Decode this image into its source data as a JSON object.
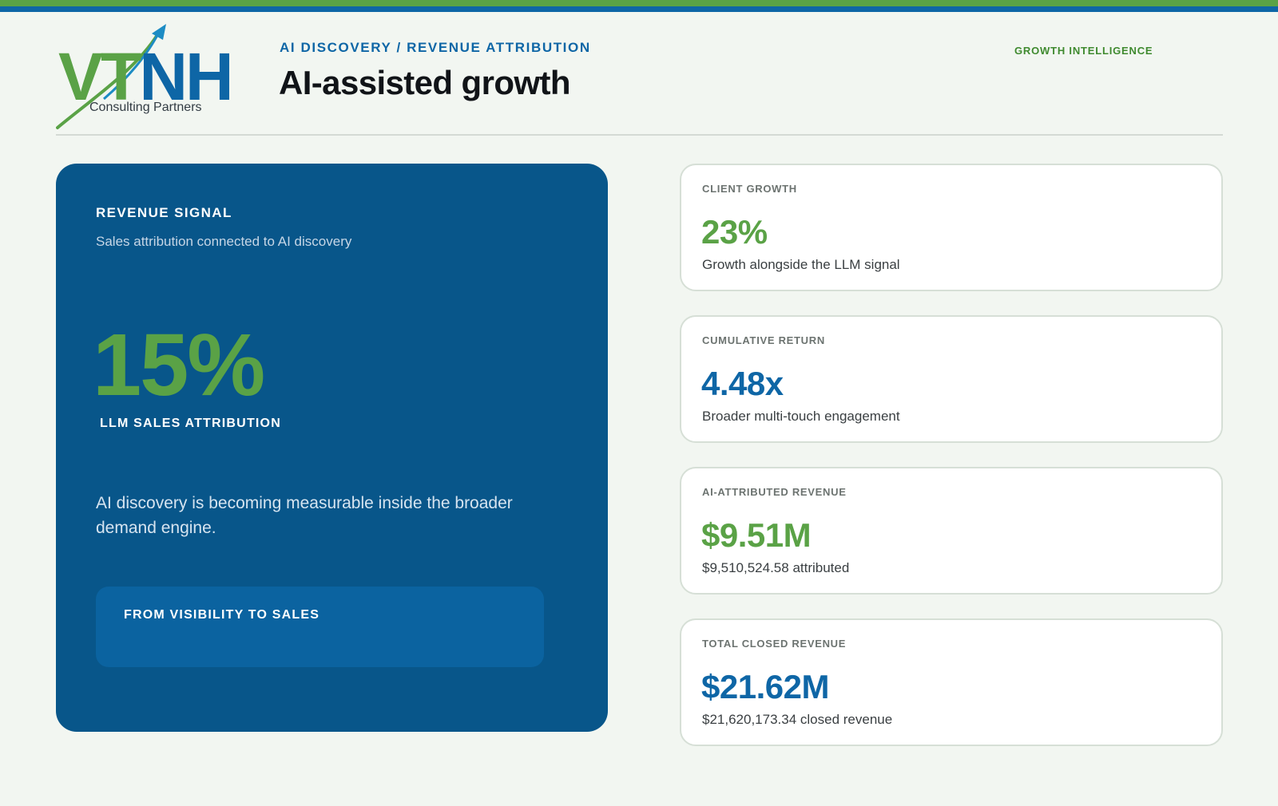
{
  "colors": {
    "brand_green": "#5aa246",
    "brand_blue": "#0e66a6",
    "hero_background": "#08568a",
    "page_background": "#f2f6f1"
  },
  "logo": {
    "letters_green": "VT",
    "letters_blue": "NH",
    "subtitle": "Consulting Partners",
    "icon": "rising-arrow-icon"
  },
  "header": {
    "kicker": "AI DISCOVERY / REVENUE ATTRIBUTION",
    "title": "AI-assisted growth",
    "tag": "GROWTH INTELLIGENCE"
  },
  "hero": {
    "label": "REVENUE SIGNAL",
    "subtitle": "Sales attribution connected to AI discovery",
    "value": "15%",
    "value_label": "LLM SALES ATTRIBUTION",
    "description": "AI discovery is becoming measurable inside the broader demand engine.",
    "inner_label": "FROM VISIBILITY TO SALES"
  },
  "metrics": [
    {
      "label": "CLIENT GROWTH",
      "value": "23%",
      "description": "Growth alongside the LLM signal",
      "accent": "green"
    },
    {
      "label": "CUMULATIVE RETURN",
      "value": "4.48x",
      "description": "Broader multi-touch engagement",
      "accent": "blue"
    },
    {
      "label": "AI-ATTRIBUTED REVENUE",
      "value": "$9.51M",
      "description": "$9,510,524.58 attributed",
      "accent": "green"
    },
    {
      "label": "TOTAL CLOSED REVENUE",
      "value": "$21.62M",
      "description": "$21,620,173.34 closed revenue",
      "accent": "blue"
    }
  ]
}
